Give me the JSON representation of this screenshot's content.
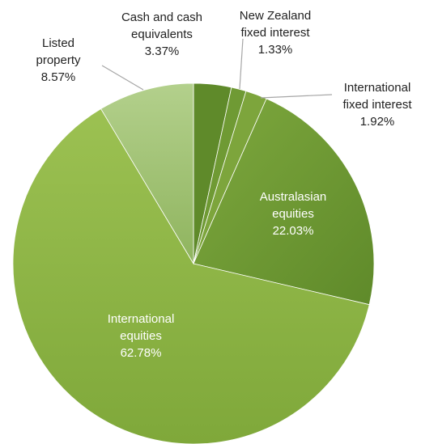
{
  "chart_data": {
    "type": "pie",
    "title": "",
    "slices": [
      {
        "label_lines": [
          "Cash and cash",
          "equivalents"
        ],
        "value": 3.37,
        "value_label": "3.37%",
        "color": "#5f8a2a"
      },
      {
        "label_lines": [
          "New Zealand",
          "fixed interest"
        ],
        "value": 1.33,
        "value_label": "1.33%",
        "color": "#6f9a34"
      },
      {
        "label_lines": [
          "International",
          "fixed interest"
        ],
        "value": 1.92,
        "value_label": "1.92%",
        "color": "#7da53c"
      },
      {
        "label_lines": [
          "Australasian",
          "equities"
        ],
        "value": 22.03,
        "value_label": "22.03%",
        "color": "#739d39"
      },
      {
        "label_lines": [
          "International",
          "equities"
        ],
        "value": 62.78,
        "value_label": "62.78%",
        "color": "#8db543"
      },
      {
        "label_lines": [
          "Listed",
          "property"
        ],
        "value": 8.57,
        "value_label": "8.57%",
        "color": "#a4c67c"
      }
    ],
    "start_angle": "12 o'clock",
    "direction": "clockwise",
    "legend": "none"
  }
}
